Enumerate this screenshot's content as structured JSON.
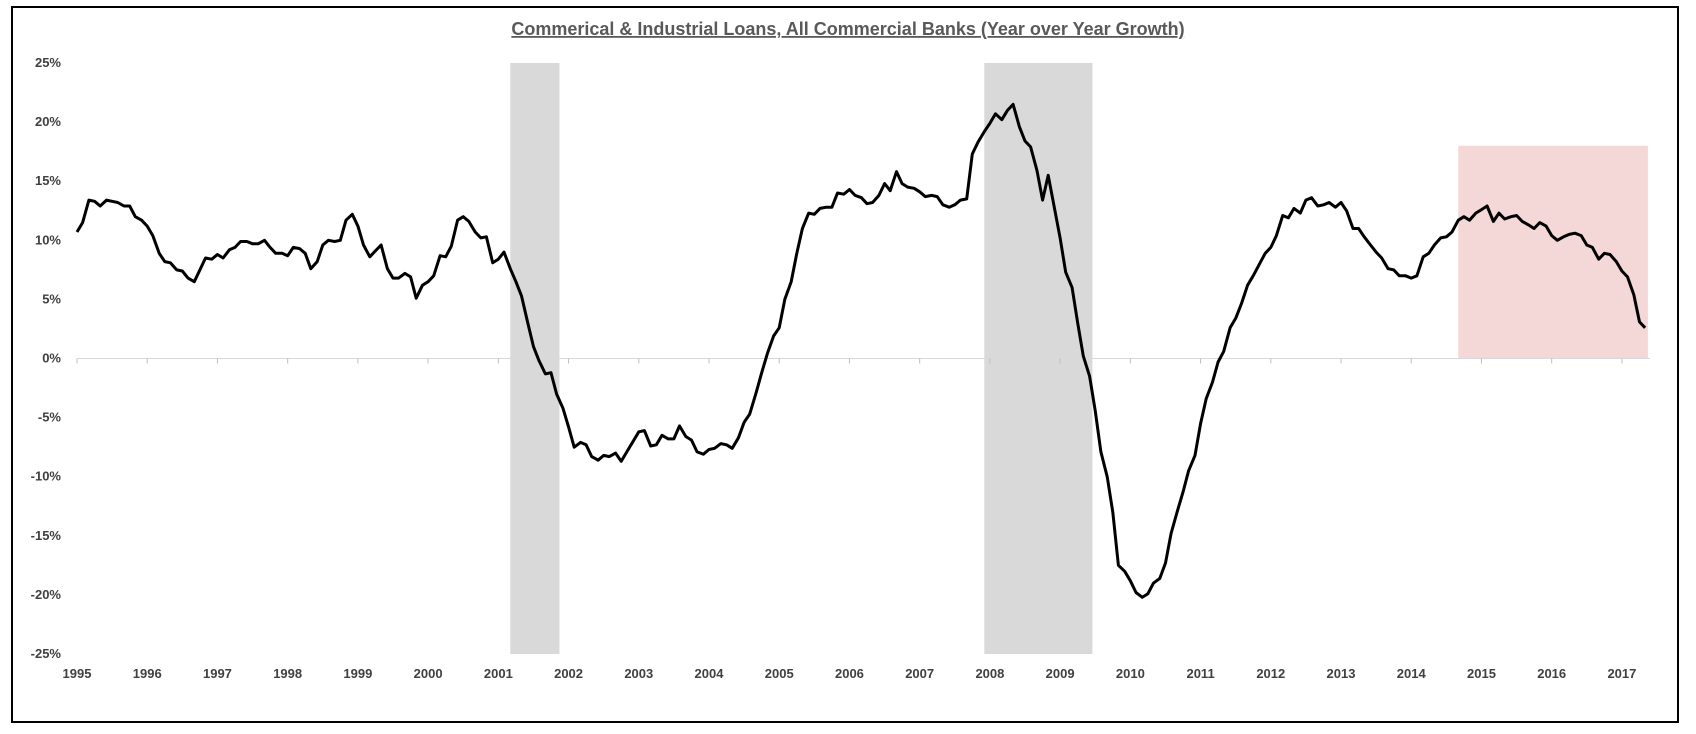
{
  "chart_data": {
    "type": "line",
    "title": "Commerical & Industrial Loans, All Commercial Banks (Year over Year Growth)",
    "xlabel": "",
    "ylabel": "",
    "x_range": [
      1995.0,
      2017.4
    ],
    "ylim": [
      -25,
      25
    ],
    "y_ticks": [
      25,
      20,
      15,
      10,
      5,
      0,
      -5,
      -10,
      -15,
      -20,
      -25
    ],
    "y_tick_labels": [
      "25%",
      "20%",
      "15%",
      "10%",
      "5%",
      "0%",
      "-5%",
      "-10%",
      "-15%",
      "-20%",
      "-25%"
    ],
    "x_ticks": [
      1995,
      1996,
      1997,
      1998,
      1999,
      2000,
      2001,
      2002,
      2003,
      2004,
      2005,
      2006,
      2007,
      2008,
      2009,
      2010,
      2011,
      2012,
      2013,
      2014,
      2015,
      2016,
      2017
    ],
    "x_tick_labels": [
      "1995",
      "1996",
      "1997",
      "1998",
      "1999",
      "2000",
      "2001",
      "2002",
      "2003",
      "2004",
      "2005",
      "2006",
      "2007",
      "2008",
      "2009",
      "2010",
      "2011",
      "2012",
      "2013",
      "2014",
      "2015",
      "2016",
      "2017"
    ],
    "grid": false,
    "legend": "none",
    "shaded_regions": [
      {
        "kind": "recession",
        "x_start": 2001.17,
        "x_end": 2001.87,
        "color": "#d9d9d9"
      },
      {
        "kind": "recession",
        "x_start": 2007.92,
        "x_end": 2009.46,
        "color": "#d9d9d9"
      },
      {
        "kind": "highlight",
        "x_start": 2014.67,
        "x_end": 2017.37,
        "y_start": 0,
        "y_end": 18,
        "color": "#f2d0d0"
      }
    ],
    "series": [
      {
        "color": "#000000",
        "points": [
          [
            1995.0,
            10.7
          ],
          [
            1995.08,
            11.5
          ],
          [
            1995.17,
            13.4
          ],
          [
            1995.25,
            13.3
          ],
          [
            1995.33,
            12.9
          ],
          [
            1995.42,
            13.4
          ],
          [
            1995.5,
            13.3
          ],
          [
            1995.58,
            13.2
          ],
          [
            1995.67,
            12.9
          ],
          [
            1995.75,
            12.9
          ],
          [
            1995.83,
            12.0
          ],
          [
            1995.92,
            11.7
          ],
          [
            1996.0,
            11.2
          ],
          [
            1996.08,
            10.4
          ],
          [
            1996.17,
            8.9
          ],
          [
            1996.25,
            8.2
          ],
          [
            1996.33,
            8.1
          ],
          [
            1996.42,
            7.5
          ],
          [
            1996.5,
            7.4
          ],
          [
            1996.58,
            6.8
          ],
          [
            1996.67,
            6.5
          ],
          [
            1996.75,
            7.5
          ],
          [
            1996.83,
            8.5
          ],
          [
            1996.92,
            8.4
          ],
          [
            1997.0,
            8.8
          ],
          [
            1997.08,
            8.5
          ],
          [
            1997.17,
            9.2
          ],
          [
            1997.25,
            9.4
          ],
          [
            1997.33,
            9.9
          ],
          [
            1997.42,
            9.9
          ],
          [
            1997.5,
            9.7
          ],
          [
            1997.58,
            9.7
          ],
          [
            1997.67,
            10.0
          ],
          [
            1997.75,
            9.4
          ],
          [
            1997.83,
            8.9
          ],
          [
            1997.92,
            8.9
          ],
          [
            1998.0,
            8.7
          ],
          [
            1998.08,
            9.4
          ],
          [
            1998.17,
            9.3
          ],
          [
            1998.25,
            8.9
          ],
          [
            1998.33,
            7.6
          ],
          [
            1998.42,
            8.2
          ],
          [
            1998.5,
            9.6
          ],
          [
            1998.58,
            10.0
          ],
          [
            1998.67,
            9.9
          ],
          [
            1998.75,
            10.0
          ],
          [
            1998.83,
            11.7
          ],
          [
            1998.92,
            12.2
          ],
          [
            1999.0,
            11.2
          ],
          [
            1999.08,
            9.6
          ],
          [
            1999.17,
            8.6
          ],
          [
            1999.25,
            9.1
          ],
          [
            1999.33,
            9.6
          ],
          [
            1999.42,
            7.6
          ],
          [
            1999.5,
            6.8
          ],
          [
            1999.58,
            6.8
          ],
          [
            1999.67,
            7.2
          ],
          [
            1999.75,
            6.9
          ],
          [
            1999.83,
            5.1
          ],
          [
            1999.92,
            6.2
          ],
          [
            2000.0,
            6.5
          ],
          [
            2000.08,
            7.0
          ],
          [
            2000.17,
            8.7
          ],
          [
            2000.25,
            8.6
          ],
          [
            2000.33,
            9.5
          ],
          [
            2000.42,
            11.7
          ],
          [
            2000.5,
            12.0
          ],
          [
            2000.58,
            11.6
          ],
          [
            2000.67,
            10.7
          ],
          [
            2000.75,
            10.2
          ],
          [
            2000.83,
            10.3
          ],
          [
            2000.92,
            8.1
          ],
          [
            2001.0,
            8.4
          ],
          [
            2001.08,
            9.0
          ],
          [
            2001.17,
            7.6
          ],
          [
            2001.25,
            6.5
          ],
          [
            2001.33,
            5.3
          ],
          [
            2001.42,
            3.0
          ],
          [
            2001.5,
            1.0
          ],
          [
            2001.58,
            -0.2
          ],
          [
            2001.67,
            -1.3
          ],
          [
            2001.75,
            -1.2
          ],
          [
            2001.83,
            -3.0
          ],
          [
            2001.92,
            -4.2
          ],
          [
            2002.0,
            -5.8
          ],
          [
            2002.08,
            -7.5
          ],
          [
            2002.17,
            -7.1
          ],
          [
            2002.25,
            -7.3
          ],
          [
            2002.33,
            -8.3
          ],
          [
            2002.42,
            -8.6
          ],
          [
            2002.5,
            -8.2
          ],
          [
            2002.58,
            -8.3
          ],
          [
            2002.67,
            -8.0
          ],
          [
            2002.75,
            -8.7
          ],
          [
            2002.83,
            -7.9
          ],
          [
            2002.92,
            -7.0
          ],
          [
            2003.0,
            -6.2
          ],
          [
            2003.08,
            -6.1
          ],
          [
            2003.17,
            -7.4
          ],
          [
            2003.25,
            -7.3
          ],
          [
            2003.33,
            -6.5
          ],
          [
            2003.42,
            -6.8
          ],
          [
            2003.5,
            -6.8
          ],
          [
            2003.58,
            -5.7
          ],
          [
            2003.67,
            -6.6
          ],
          [
            2003.75,
            -6.9
          ],
          [
            2003.83,
            -7.9
          ],
          [
            2003.92,
            -8.1
          ],
          [
            2004.0,
            -7.7
          ],
          [
            2004.08,
            -7.6
          ],
          [
            2004.17,
            -7.2
          ],
          [
            2004.25,
            -7.3
          ],
          [
            2004.33,
            -7.6
          ],
          [
            2004.42,
            -6.7
          ],
          [
            2004.5,
            -5.4
          ],
          [
            2004.58,
            -4.7
          ],
          [
            2004.67,
            -2.9
          ],
          [
            2004.75,
            -1.2
          ],
          [
            2004.83,
            0.4
          ],
          [
            2004.92,
            1.9
          ],
          [
            2005.0,
            2.6
          ],
          [
            2005.08,
            5.0
          ],
          [
            2005.17,
            6.5
          ],
          [
            2005.25,
            8.9
          ],
          [
            2005.33,
            11.0
          ],
          [
            2005.42,
            12.3
          ],
          [
            2005.5,
            12.2
          ],
          [
            2005.58,
            12.7
          ],
          [
            2005.67,
            12.8
          ],
          [
            2005.75,
            12.8
          ],
          [
            2005.83,
            14.0
          ],
          [
            2005.92,
            13.9
          ],
          [
            2006.0,
            14.3
          ],
          [
            2006.08,
            13.8
          ],
          [
            2006.17,
            13.6
          ],
          [
            2006.25,
            13.1
          ],
          [
            2006.33,
            13.2
          ],
          [
            2006.42,
            13.8
          ],
          [
            2006.5,
            14.8
          ],
          [
            2006.58,
            14.2
          ],
          [
            2006.67,
            15.8
          ],
          [
            2006.75,
            14.8
          ],
          [
            2006.83,
            14.5
          ],
          [
            2006.92,
            14.4
          ],
          [
            2007.0,
            14.1
          ],
          [
            2007.08,
            13.7
          ],
          [
            2007.17,
            13.8
          ],
          [
            2007.25,
            13.7
          ],
          [
            2007.33,
            13.0
          ],
          [
            2007.42,
            12.8
          ],
          [
            2007.5,
            13.0
          ],
          [
            2007.58,
            13.4
          ],
          [
            2007.67,
            13.5
          ],
          [
            2007.75,
            17.3
          ],
          [
            2007.83,
            18.3
          ],
          [
            2007.92,
            19.2
          ],
          [
            2008.0,
            19.9
          ],
          [
            2008.08,
            20.7
          ],
          [
            2008.17,
            20.2
          ],
          [
            2008.25,
            21.0
          ],
          [
            2008.33,
            21.5
          ],
          [
            2008.42,
            19.6
          ],
          [
            2008.5,
            18.4
          ],
          [
            2008.58,
            17.9
          ],
          [
            2008.67,
            15.9
          ],
          [
            2008.75,
            13.4
          ],
          [
            2008.83,
            15.5
          ],
          [
            2008.92,
            12.7
          ],
          [
            2009.0,
            10.2
          ],
          [
            2009.08,
            7.3
          ],
          [
            2009.17,
            6.0
          ],
          [
            2009.25,
            3.0
          ],
          [
            2009.33,
            0.2
          ],
          [
            2009.42,
            -1.5
          ],
          [
            2009.5,
            -4.4
          ],
          [
            2009.58,
            -7.9
          ],
          [
            2009.67,
            -10.0
          ],
          [
            2009.75,
            -13.0
          ],
          [
            2009.83,
            -17.5
          ],
          [
            2009.92,
            -18.0
          ],
          [
            2010.0,
            -18.8
          ],
          [
            2010.08,
            -19.8
          ],
          [
            2010.17,
            -20.2
          ],
          [
            2010.25,
            -19.9
          ],
          [
            2010.33,
            -19.0
          ],
          [
            2010.42,
            -18.6
          ],
          [
            2010.5,
            -17.3
          ],
          [
            2010.58,
            -14.8
          ],
          [
            2010.67,
            -12.9
          ],
          [
            2010.75,
            -11.3
          ],
          [
            2010.83,
            -9.5
          ],
          [
            2010.92,
            -8.2
          ],
          [
            2011.0,
            -5.5
          ],
          [
            2011.08,
            -3.4
          ],
          [
            2011.17,
            -2.0
          ],
          [
            2011.25,
            -0.3
          ],
          [
            2011.33,
            0.6
          ],
          [
            2011.42,
            2.6
          ],
          [
            2011.5,
            3.4
          ],
          [
            2011.58,
            4.6
          ],
          [
            2011.67,
            6.2
          ],
          [
            2011.75,
            7.0
          ],
          [
            2011.83,
            7.9
          ],
          [
            2011.92,
            8.9
          ],
          [
            2012.0,
            9.4
          ],
          [
            2012.08,
            10.4
          ],
          [
            2012.17,
            12.1
          ],
          [
            2012.25,
            11.9
          ],
          [
            2012.33,
            12.7
          ],
          [
            2012.42,
            12.3
          ],
          [
            2012.5,
            13.4
          ],
          [
            2012.58,
            13.6
          ],
          [
            2012.67,
            12.9
          ],
          [
            2012.75,
            13.0
          ],
          [
            2012.83,
            13.2
          ],
          [
            2012.92,
            12.8
          ],
          [
            2013.0,
            13.2
          ],
          [
            2013.08,
            12.5
          ],
          [
            2013.17,
            11.0
          ],
          [
            2013.25,
            11.0
          ],
          [
            2013.33,
            10.3
          ],
          [
            2013.42,
            9.6
          ],
          [
            2013.5,
            9.0
          ],
          [
            2013.58,
            8.5
          ],
          [
            2013.67,
            7.6
          ],
          [
            2013.75,
            7.5
          ],
          [
            2013.83,
            7.0
          ],
          [
            2013.92,
            7.0
          ],
          [
            2014.0,
            6.8
          ],
          [
            2014.08,
            7.0
          ],
          [
            2014.17,
            8.6
          ],
          [
            2014.25,
            8.9
          ],
          [
            2014.33,
            9.6
          ],
          [
            2014.42,
            10.2
          ],
          [
            2014.5,
            10.3
          ],
          [
            2014.58,
            10.7
          ],
          [
            2014.67,
            11.7
          ],
          [
            2014.75,
            12.0
          ],
          [
            2014.83,
            11.7
          ],
          [
            2014.92,
            12.3
          ],
          [
            2015.0,
            12.6
          ],
          [
            2015.08,
            12.9
          ],
          [
            2015.17,
            11.6
          ],
          [
            2015.25,
            12.3
          ],
          [
            2015.33,
            11.8
          ],
          [
            2015.42,
            12.0
          ],
          [
            2015.5,
            12.1
          ],
          [
            2015.58,
            11.6
          ],
          [
            2015.67,
            11.3
          ],
          [
            2015.75,
            11.0
          ],
          [
            2015.83,
            11.5
          ],
          [
            2015.92,
            11.2
          ],
          [
            2016.0,
            10.4
          ],
          [
            2016.08,
            10.0
          ],
          [
            2016.17,
            10.3
          ],
          [
            2016.25,
            10.5
          ],
          [
            2016.33,
            10.6
          ],
          [
            2016.42,
            10.4
          ],
          [
            2016.5,
            9.6
          ],
          [
            2016.58,
            9.4
          ],
          [
            2016.67,
            8.4
          ],
          [
            2016.75,
            8.9
          ],
          [
            2016.83,
            8.8
          ],
          [
            2016.92,
            8.2
          ],
          [
            2017.0,
            7.4
          ],
          [
            2017.08,
            6.9
          ],
          [
            2017.17,
            5.4
          ],
          [
            2017.25,
            3.1
          ],
          [
            2017.33,
            2.6
          ]
        ]
      }
    ]
  }
}
